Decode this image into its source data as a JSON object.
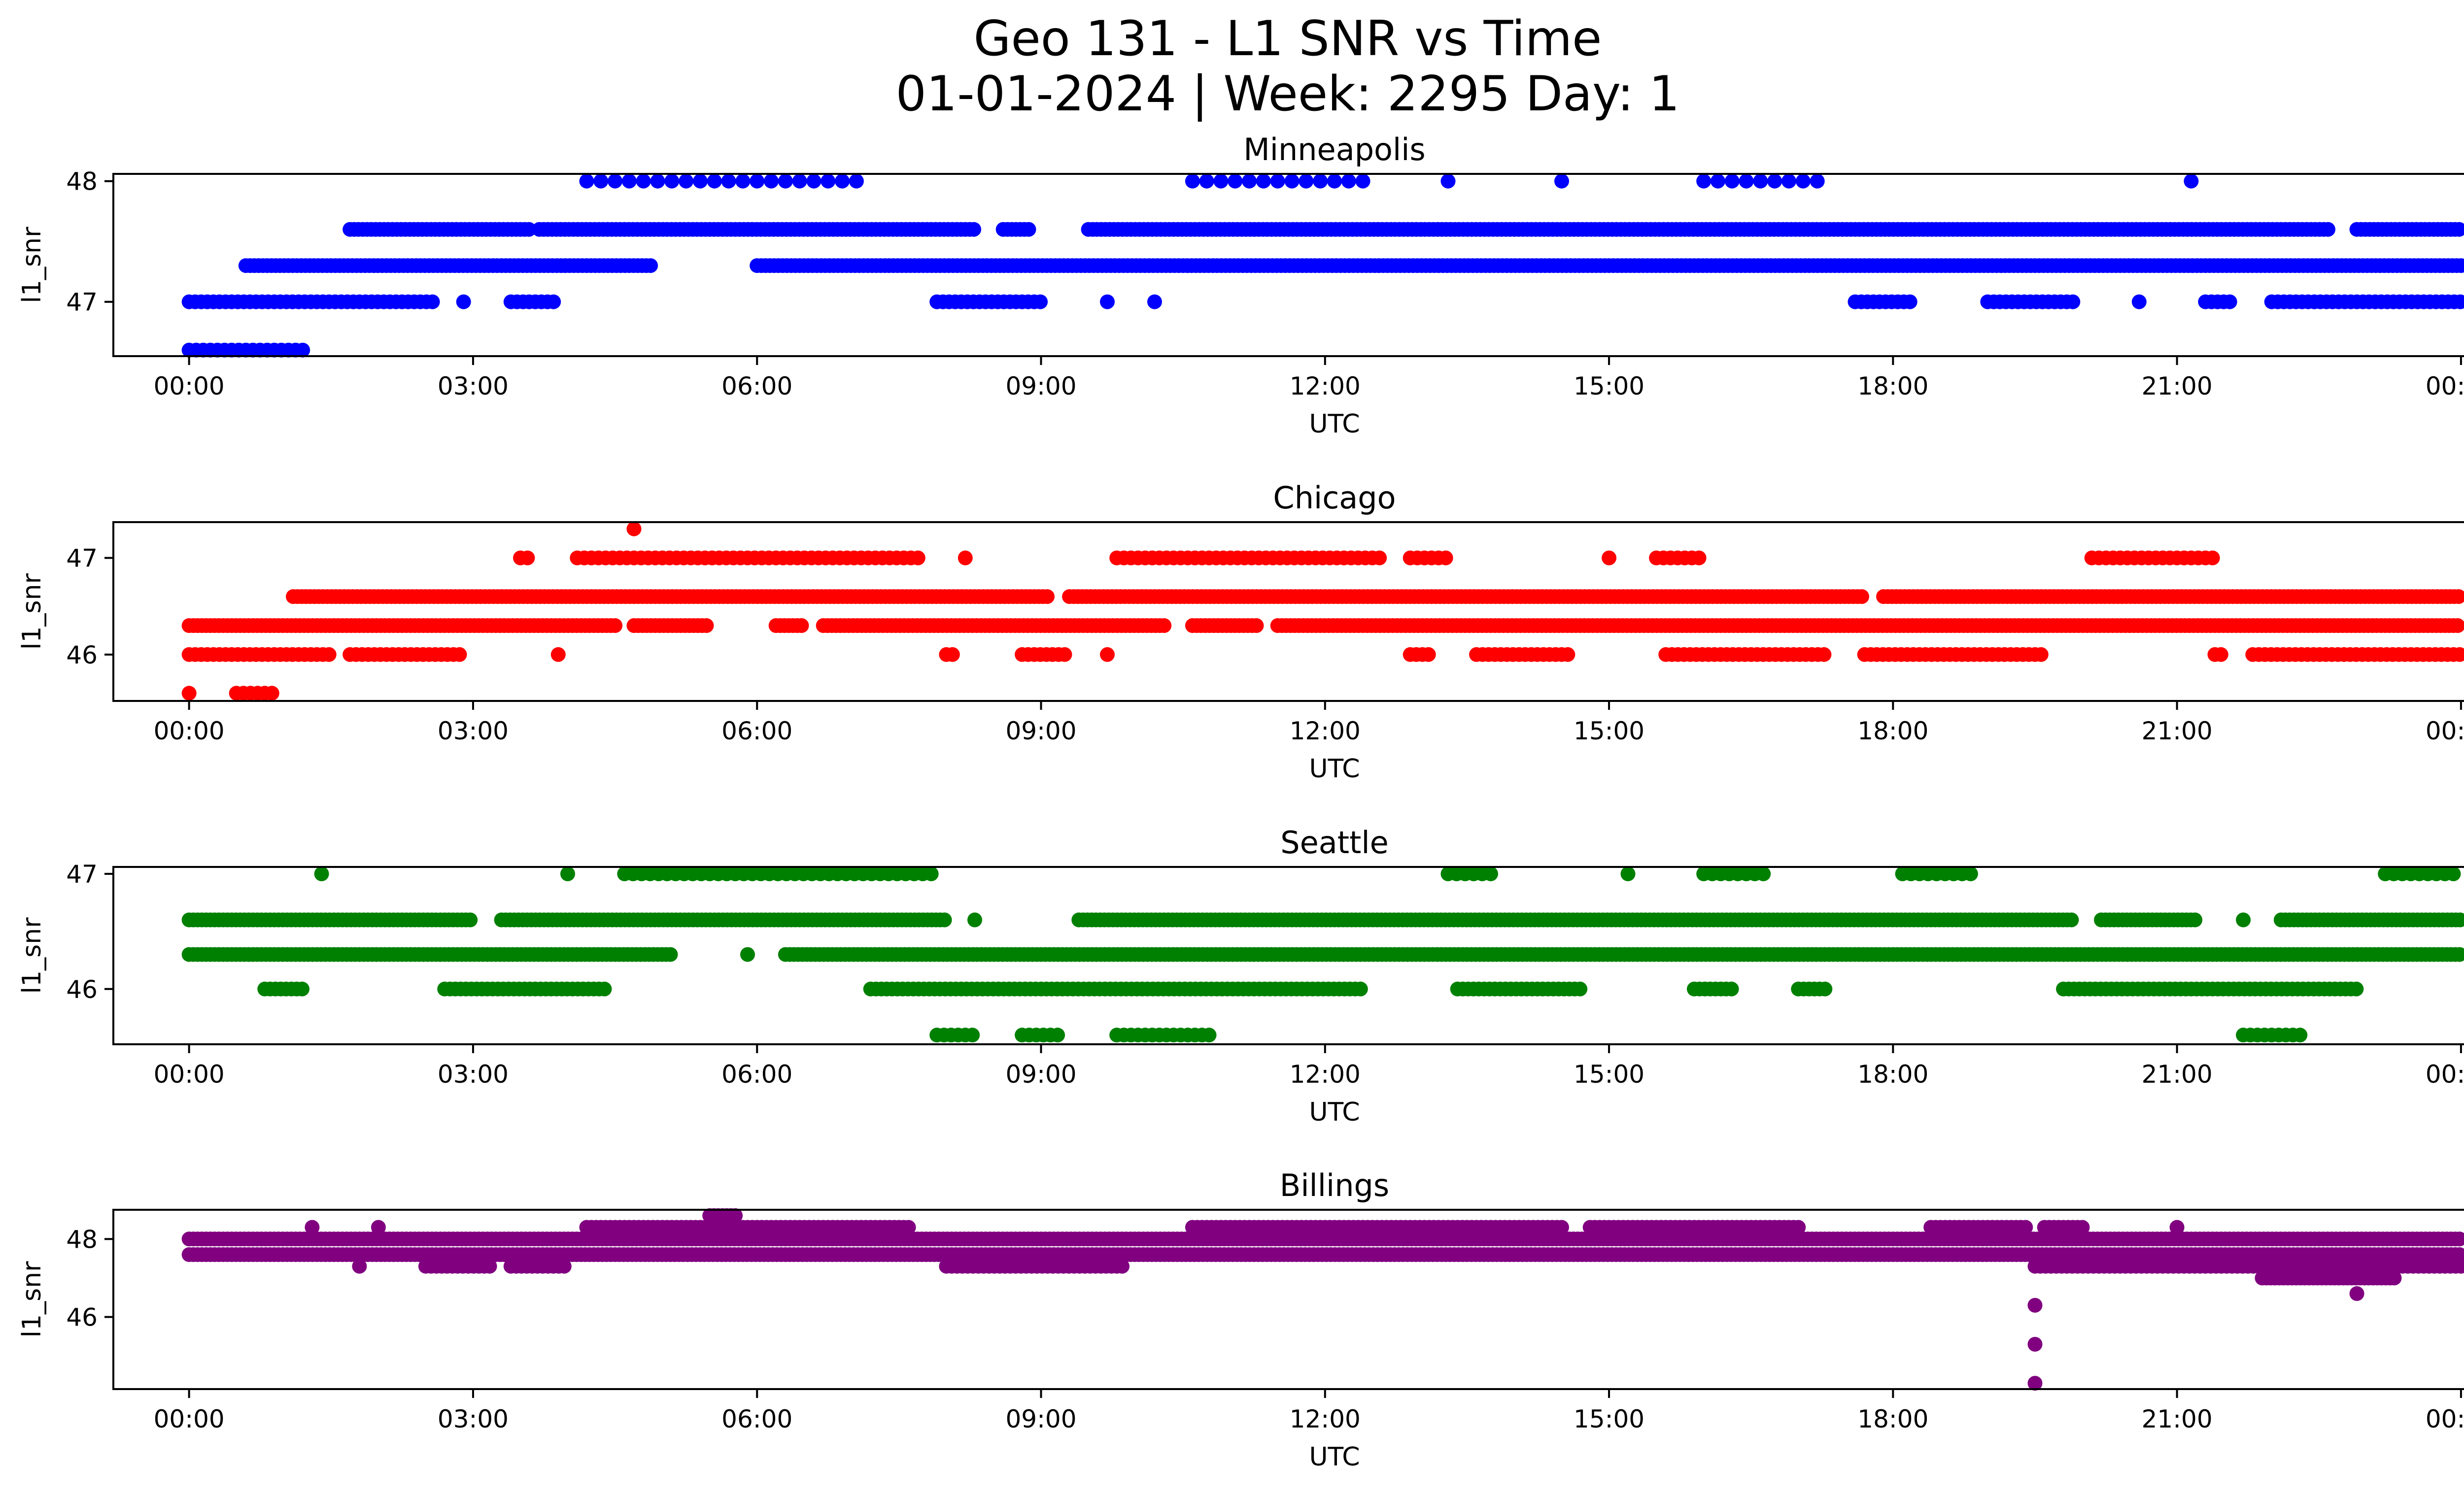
{
  "figure": {
    "title_line1": "Geo 131 - L1 SNR vs Time",
    "title_line2": "01-01-2024 | Week: 2295 Day: 1"
  },
  "chart_data": [
    {
      "type": "scatter",
      "title": "Minneapolis",
      "xlabel": "UTC",
      "ylabel": "l1_snr",
      "color": "#0000ff",
      "xlim": [
        -0.8,
        25.0
      ],
      "ylim": [
        46.55,
        48.06
      ],
      "x_ticks": [
        "00:00",
        "03:00",
        "06:00",
        "09:00",
        "12:00",
        "15:00",
        "18:00",
        "21:00",
        "00:00"
      ],
      "y_ticks": [
        47,
        48
      ],
      "levels": [
        {
          "y": 48.0,
          "ranges": [
            [
              4.2,
              7.1
            ],
            [
              10.6,
              12.5
            ],
            [
              13.3,
              13.3
            ],
            [
              14.5,
              14.5
            ],
            [
              16.0,
              17.3
            ],
            [
              21.15,
              21.15
            ]
          ],
          "density": 0.3
        },
        {
          "y": 47.6,
          "ranges": [
            [
              1.7,
              3.6
            ],
            [
              3.7,
              8.3
            ],
            [
              8.6,
              8.9
            ],
            [
              9.5,
              22.6
            ],
            [
              22.9,
              24.0
            ]
          ],
          "density": 1.0
        },
        {
          "y": 47.3,
          "ranges": [
            [
              0.6,
              4.9
            ],
            [
              6.0,
              24.0
            ]
          ],
          "density": 1.0
        },
        {
          "y": 47.0,
          "ranges": [
            [
              0.0,
              2.6
            ],
            [
              2.9,
              2.9
            ],
            [
              3.4,
              3.9
            ],
            [
              7.9,
              9.0
            ],
            [
              9.7,
              9.7
            ],
            [
              10.2,
              10.2
            ],
            [
              17.6,
              18.2
            ],
            [
              19.0,
              19.9
            ],
            [
              20.6,
              20.6
            ],
            [
              21.3,
              21.6
            ],
            [
              22.0,
              24.0
            ]
          ],
          "density": 0.7
        },
        {
          "y": 46.6,
          "ranges": [
            [
              0.0,
              1.2
            ]
          ],
          "density": 0.6
        }
      ]
    },
    {
      "type": "scatter",
      "title": "Chicago",
      "xlabel": "UTC",
      "ylabel": "l1_snr",
      "color": "#ff0000",
      "xlim": [
        -0.8,
        25.0
      ],
      "ylim": [
        45.52,
        47.37
      ],
      "x_ticks": [
        "00:00",
        "03:00",
        "06:00",
        "09:00",
        "12:00",
        "15:00",
        "18:00",
        "21:00",
        "00:00"
      ],
      "y_ticks": [
        46,
        47
      ],
      "levels": [
        {
          "y": 47.3,
          "ranges": [
            [
              4.7,
              4.7
            ]
          ],
          "density": 1.0
        },
        {
          "y": 47.0,
          "ranges": [
            [
              3.5,
              3.6
            ],
            [
              4.1,
              7.7
            ],
            [
              8.2,
              8.2
            ],
            [
              9.8,
              12.6
            ],
            [
              12.9,
              13.3
            ],
            [
              15.0,
              15.0
            ],
            [
              15.5,
              16.0
            ],
            [
              20.1,
              21.4
            ]
          ],
          "density": 0.6
        },
        {
          "y": 46.6,
          "ranges": [
            [
              1.1,
              9.1
            ],
            [
              9.3,
              17.7
            ],
            [
              17.9,
              24.0
            ]
          ],
          "density": 1.0
        },
        {
          "y": 46.3,
          "ranges": [
            [
              0.0,
              4.5
            ],
            [
              4.7,
              5.5
            ],
            [
              6.2,
              6.5
            ],
            [
              6.7,
              10.3
            ],
            [
              10.6,
              11.3
            ],
            [
              11.5,
              24.0
            ]
          ],
          "density": 1.0
        },
        {
          "y": 46.0,
          "ranges": [
            [
              0.0,
              1.5
            ],
            [
              1.7,
              2.9
            ],
            [
              3.9,
              3.9
            ],
            [
              8.0,
              8.1
            ],
            [
              8.8,
              9.3
            ],
            [
              9.7,
              9.7
            ],
            [
              12.9,
              13.1
            ],
            [
              13.6,
              14.6
            ],
            [
              15.6,
              17.3
            ],
            [
              17.7,
              19.6
            ],
            [
              21.4,
              21.5
            ],
            [
              21.8,
              24.0
            ]
          ],
          "density": 0.7
        },
        {
          "y": 45.6,
          "ranges": [
            [
              0.0,
              0.0
            ],
            [
              0.5,
              0.9
            ]
          ],
          "density": 0.6
        }
      ]
    },
    {
      "type": "scatter",
      "title": "Seattle",
      "xlabel": "UTC",
      "ylabel": "l1_snr",
      "color": "#008000",
      "xlim": [
        -0.8,
        25.0
      ],
      "ylim": [
        45.52,
        47.06
      ],
      "x_ticks": [
        "00:00",
        "03:00",
        "06:00",
        "09:00",
        "12:00",
        "15:00",
        "18:00",
        "21:00",
        "00:00"
      ],
      "y_ticks": [
        46,
        47
      ],
      "levels": [
        {
          "y": 47.0,
          "ranges": [
            [
              1.4,
              1.4
            ],
            [
              4.0,
              4.0
            ],
            [
              4.6,
              7.9
            ],
            [
              13.3,
              13.8
            ],
            [
              15.2,
              15.2
            ],
            [
              16.0,
              16.7
            ],
            [
              18.1,
              18.9
            ],
            [
              23.2,
              24.0
            ]
          ],
          "density": 0.5
        },
        {
          "y": 46.6,
          "ranges": [
            [
              0.0,
              3.0
            ],
            [
              3.3,
              8.0
            ],
            [
              8.3,
              8.3
            ],
            [
              9.4,
              19.9
            ],
            [
              20.2,
              21.2
            ],
            [
              21.7,
              21.7
            ],
            [
              22.1,
              24.0
            ]
          ],
          "density": 1.0
        },
        {
          "y": 46.3,
          "ranges": [
            [
              0.0,
              5.1
            ],
            [
              5.9,
              5.9
            ],
            [
              6.3,
              24.0
            ]
          ],
          "density": 1.0
        },
        {
          "y": 46.0,
          "ranges": [
            [
              0.8,
              1.2
            ],
            [
              2.7,
              4.4
            ],
            [
              7.2,
              12.4
            ],
            [
              13.4,
              14.7
            ],
            [
              15.9,
              16.3
            ],
            [
              17.0,
              17.3
            ],
            [
              19.8,
              22.9
            ]
          ],
          "density": 0.8
        },
        {
          "y": 45.6,
          "ranges": [
            [
              7.9,
              8.3
            ],
            [
              8.8,
              9.2
            ],
            [
              9.8,
              10.8
            ],
            [
              21.7,
              22.3
            ]
          ],
          "density": 0.6
        }
      ]
    },
    {
      "type": "scatter",
      "title": "Billings",
      "xlabel": "UTC",
      "ylabel": "l1_snr",
      "color": "#800080",
      "xlim": [
        -0.8,
        25.0
      ],
      "ylim": [
        44.15,
        48.75
      ],
      "x_ticks": [
        "00:00",
        "03:00",
        "06:00",
        "09:00",
        "12:00",
        "15:00",
        "18:00",
        "21:00",
        "00:00"
      ],
      "y_ticks": [
        46,
        48
      ],
      "levels": [
        {
          "y": 48.6,
          "ranges": [
            [
              5.5,
              5.8
            ]
          ],
          "density": 1.0
        },
        {
          "y": 48.3,
          "ranges": [
            [
              1.3,
              1.3
            ],
            [
              2.0,
              2.0
            ],
            [
              4.2,
              7.6
            ],
            [
              10.6,
              14.5
            ],
            [
              14.8,
              17.0
            ],
            [
              18.4,
              19.4
            ],
            [
              19.6,
              20.0
            ],
            [
              21.0,
              21.0
            ]
          ],
          "density": 0.9
        },
        {
          "y": 48.0,
          "ranges": [
            [
              0.0,
              24.0
            ]
          ],
          "density": 1.0
        },
        {
          "y": 47.6,
          "ranges": [
            [
              0.0,
              24.0
            ]
          ],
          "density": 1.0
        },
        {
          "y": 47.3,
          "ranges": [
            [
              1.8,
              1.8
            ],
            [
              2.5,
              3.2
            ],
            [
              3.4,
              4.0
            ],
            [
              8.0,
              9.9
            ],
            [
              19.5,
              24.0
            ]
          ],
          "density": 0.8
        },
        {
          "y": 47.0,
          "ranges": [
            [
              21.9,
              23.3
            ]
          ],
          "density": 1.0
        },
        {
          "y": 46.6,
          "ranges": [
            [
              22.9,
              22.9
            ]
          ],
          "density": 1.0
        },
        {
          "y": 46.3,
          "ranges": [
            [
              19.5,
              19.5
            ]
          ],
          "density": 1.0
        },
        {
          "y": 45.3,
          "ranges": [
            [
              19.5,
              19.5
            ]
          ],
          "density": 1.0
        },
        {
          "y": 44.3,
          "ranges": [
            [
              19.5,
              19.5
            ]
          ],
          "density": 1.0
        }
      ]
    }
  ]
}
